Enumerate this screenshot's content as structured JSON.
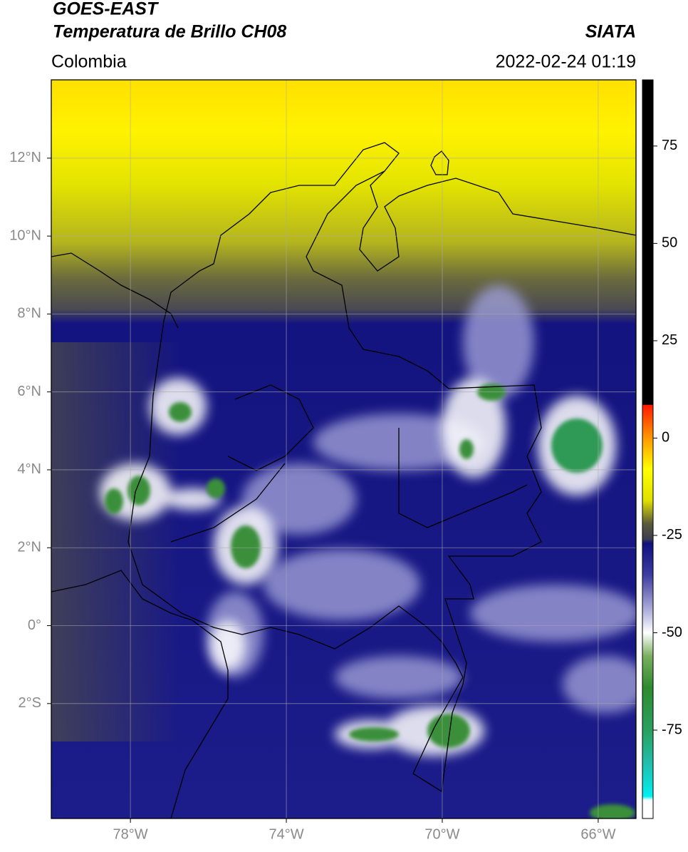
{
  "header": {
    "title": "GOES-EAST",
    "subtitle": "Temperatura de Brillo CH08",
    "source": "SIATA",
    "region": "Colombia",
    "timestamp": "2022-02-24 01:19"
  },
  "map": {
    "xlim": [
      -80.03,
      -65.03
    ],
    "ylim": [
      -4.95,
      14.01
    ],
    "grid": true,
    "xticks": [
      {
        "value": -78,
        "label": "78°W"
      },
      {
        "value": -74,
        "label": "74°W"
      },
      {
        "value": -70,
        "label": "70°W"
      },
      {
        "value": -66,
        "label": "66°W"
      }
    ],
    "yticks": [
      {
        "value": 12,
        "label": "12°N"
      },
      {
        "value": 10,
        "label": "10°N"
      },
      {
        "value": 8,
        "label": "8°N"
      },
      {
        "value": 6,
        "label": "6°N"
      },
      {
        "value": 4,
        "label": "4°N"
      },
      {
        "value": 2,
        "label": "2°N"
      },
      {
        "value": 0,
        "label": "0°"
      },
      {
        "value": -2,
        "label": "2°S"
      }
    ]
  },
  "colorbar": {
    "lim": [
      -97.7,
      92
    ],
    "ticks": [
      75,
      50,
      25,
      0,
      -25,
      -50,
      -75
    ],
    "colormap": [
      [
        92,
        "#000000"
      ],
      [
        8.6,
        "#000000"
      ],
      [
        8.5,
        "#ff1a00"
      ],
      [
        0,
        "#ff9900"
      ],
      [
        -8,
        "#ffff00"
      ],
      [
        -16,
        "#e0e000"
      ],
      [
        -22,
        "#5a5a3c"
      ],
      [
        -26,
        "#3c3c50"
      ],
      [
        -27,
        "#10107e"
      ],
      [
        -35,
        "#3b3ba0"
      ],
      [
        -45,
        "#b9b9e0"
      ],
      [
        -50,
        "#ffffff"
      ],
      [
        -56,
        "#7ab060"
      ],
      [
        -64,
        "#2e8a2e"
      ],
      [
        -75,
        "#2aa060"
      ],
      [
        -84,
        "#20c0b0"
      ],
      [
        -92,
        "#00f0f0"
      ],
      [
        -93,
        "#ffffff"
      ],
      [
        -97.7,
        "#ffffff"
      ]
    ]
  }
}
